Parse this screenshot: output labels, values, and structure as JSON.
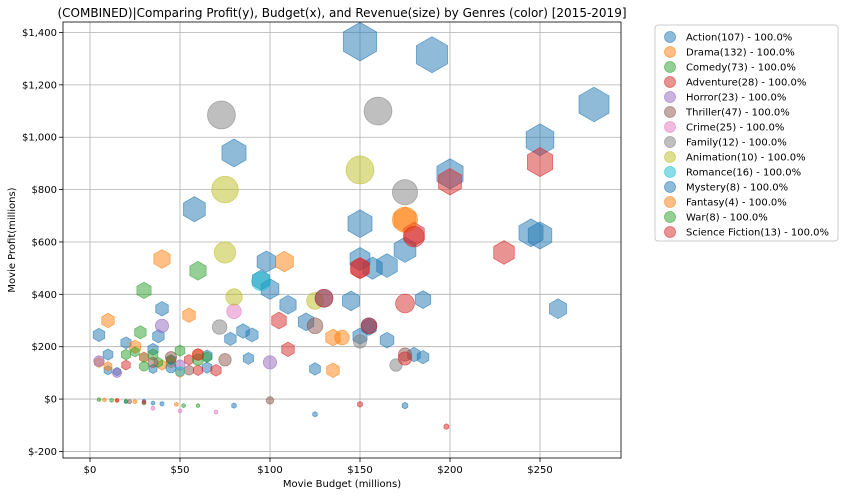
{
  "chart_data": {
    "type": "scatter",
    "title": "(COMBINED)|Comparing Profit(y), Budget(x), and Revenue(size) by Genres (color) [2015-2019]",
    "xlabel": "Movie Budget (millions)",
    "ylabel": "Movie Profit(millions)",
    "xlim": [
      -15,
      295
    ],
    "ylim": [
      -225,
      1440
    ],
    "x_ticks": [
      0,
      50,
      100,
      150,
      200,
      250
    ],
    "x_tick_labels": [
      "$0",
      "$50",
      "$100",
      "$150",
      "$200",
      "$250"
    ],
    "y_ticks": [
      -200,
      0,
      200,
      400,
      600,
      800,
      1000,
      1200,
      1400
    ],
    "y_tick_labels": [
      "$-200",
      "$0",
      "$200",
      "$400",
      "$600",
      "$800",
      "$1,000",
      "$1,200",
      "$1,400"
    ],
    "grid": true,
    "legend_position": "outside-right",
    "colors": {
      "Action": "#1f77b4",
      "Drama": "#ff7f0e",
      "Comedy": "#2ca02c",
      "Adventure": "#d62728",
      "Horror": "#9467bd",
      "Thriller": "#8c564b",
      "Crime": "#e377c2",
      "Family": "#7f7f7f",
      "Animation": "#bcbd22",
      "Romance": "#17becf",
      "Mystery": "#1f77b4",
      "Fantasy": "#ff7f0e",
      "War": "#2ca02c",
      "Science Fiction": "#d62728"
    },
    "legend": [
      {
        "label": "Action(107) - 100.0%",
        "color": "#1f77b4"
      },
      {
        "label": "Drama(132) - 100.0%",
        "color": "#ff7f0e"
      },
      {
        "label": "Comedy(73) - 100.0%",
        "color": "#2ca02c"
      },
      {
        "label": "Adventure(28) - 100.0%",
        "color": "#d62728"
      },
      {
        "label": "Horror(23) - 100.0%",
        "color": "#9467bd"
      },
      {
        "label": "Thriller(47) - 100.0%",
        "color": "#8c564b"
      },
      {
        "label": "Crime(25) - 100.0%",
        "color": "#e377c2"
      },
      {
        "label": "Family(12) - 100.0%",
        "color": "#7f7f7f"
      },
      {
        "label": "Animation(10) - 100.0%",
        "color": "#bcbd22"
      },
      {
        "label": "Romance(16) - 100.0%",
        "color": "#17becf"
      },
      {
        "label": "Mystery(8) - 100.0%",
        "color": "#1f77b4"
      },
      {
        "label": "Fantasy(4) - 100.0%",
        "color": "#ff7f0e"
      },
      {
        "label": "War(8) - 100.0%",
        "color": "#2ca02c"
      },
      {
        "label": "Science Fiction(13) - 100.0%",
        "color": "#d62728"
      }
    ],
    "series": [
      {
        "genre": "Action",
        "marker": "hexagon",
        "points": [
          [
            150,
            1365,
            2100
          ],
          [
            190,
            1315,
            1850
          ],
          [
            280,
            1125,
            1700
          ],
          [
            250,
            990,
            1450
          ],
          [
            200,
            860,
            1300
          ],
          [
            80,
            940,
            1100
          ],
          [
            58,
            725,
            900
          ],
          [
            150,
            670,
            1100
          ],
          [
            245,
            635,
            1100
          ],
          [
            250,
            625,
            1050
          ],
          [
            175,
            570,
            900
          ],
          [
            165,
            510,
            800
          ],
          [
            150,
            535,
            750
          ],
          [
            157,
            500,
            700
          ],
          [
            98,
            525,
            650
          ],
          [
            100,
            420,
            600
          ],
          [
            95,
            455,
            550
          ],
          [
            110,
            360,
            500
          ],
          [
            145,
            375,
            550
          ],
          [
            185,
            380,
            450
          ],
          [
            260,
            345,
            550
          ],
          [
            120,
            295,
            450
          ],
          [
            155,
            275,
            400
          ],
          [
            40,
            345,
            300
          ],
          [
            150,
            240,
            380
          ],
          [
            165,
            225,
            350
          ],
          [
            180,
            170,
            300
          ],
          [
            185,
            160,
            250
          ],
          [
            5,
            245,
            250
          ],
          [
            10,
            170,
            180
          ],
          [
            20,
            215,
            200
          ],
          [
            35,
            190,
            200
          ],
          [
            38,
            240,
            250
          ],
          [
            85,
            260,
            300
          ],
          [
            90,
            245,
            280
          ],
          [
            78,
            230,
            250
          ],
          [
            65,
            165,
            200
          ],
          [
            88,
            155,
            200
          ],
          [
            125,
            115,
            220
          ],
          [
            65,
            120,
            180
          ],
          [
            45,
            150,
            150
          ],
          [
            30,
            160,
            150
          ],
          [
            10,
            110,
            120
          ],
          [
            15,
            105,
            100
          ],
          [
            35,
            115,
            120
          ],
          [
            175,
            -25,
            60
          ],
          [
            80,
            -25,
            40
          ],
          [
            125,
            -58,
            40
          ],
          [
            40,
            -18,
            30
          ],
          [
            35,
            -15,
            25
          ],
          [
            20,
            -10,
            20
          ],
          [
            30,
            -8,
            20
          ]
        ]
      },
      {
        "genre": "Drama",
        "marker": "hexagon",
        "points": [
          [
            175,
            685,
            900
          ],
          [
            108,
            525,
            600
          ],
          [
            40,
            535,
            500
          ],
          [
            10,
            300,
            300
          ],
          [
            55,
            320,
            300
          ],
          [
            135,
            235,
            400
          ],
          [
            135,
            110,
            300
          ],
          [
            25,
            200,
            250
          ],
          [
            60,
            170,
            200
          ],
          [
            45,
            140,
            180
          ],
          [
            40,
            130,
            150
          ],
          [
            30,
            160,
            150
          ],
          [
            5,
            140,
            150
          ],
          [
            10,
            125,
            120
          ],
          [
            50,
            100,
            120
          ],
          [
            48,
            -20,
            25
          ],
          [
            25,
            -10,
            25
          ],
          [
            15,
            -5,
            20
          ],
          [
            8,
            -3,
            18
          ]
        ]
      },
      {
        "genre": "Comedy",
        "marker": "hexagon",
        "points": [
          [
            60,
            490,
            500
          ],
          [
            30,
            415,
            380
          ],
          [
            28,
            255,
            250
          ],
          [
            50,
            185,
            180
          ],
          [
            35,
            170,
            180
          ],
          [
            20,
            170,
            160
          ],
          [
            65,
            160,
            160
          ],
          [
            38,
            140,
            140
          ],
          [
            25,
            180,
            140
          ],
          [
            45,
            150,
            140
          ],
          [
            52,
            -25,
            25
          ],
          [
            60,
            -25,
            20
          ],
          [
            30,
            -15,
            18
          ],
          [
            12,
            -5,
            15
          ],
          [
            20,
            -8,
            15
          ],
          [
            5,
            -2,
            12
          ]
        ]
      },
      {
        "genre": "Adventure",
        "marker": "hexagon",
        "points": [
          [
            250,
            905,
            1200
          ],
          [
            200,
            830,
            1000
          ],
          [
            230,
            560,
            800
          ],
          [
            180,
            630,
            800
          ],
          [
            150,
            500,
            650
          ],
          [
            105,
            300,
            400
          ],
          [
            110,
            190,
            300
          ],
          [
            70,
            110,
            200
          ],
          [
            60,
            110,
            160
          ],
          [
            55,
            150,
            160
          ],
          [
            20,
            130,
            140
          ],
          [
            150,
            -20,
            45
          ],
          [
            198,
            -105,
            45
          ],
          [
            30,
            -12,
            20
          ],
          [
            15,
            -5,
            15
          ]
        ]
      },
      {
        "genre": "Horror",
        "marker": "circle",
        "points": [
          [
            40,
            280,
            250
          ],
          [
            100,
            140,
            250
          ],
          [
            5,
            145,
            160
          ],
          [
            15,
            100,
            120
          ],
          [
            50,
            130,
            150
          ]
        ]
      },
      {
        "genre": "Thriller",
        "marker": "circle",
        "points": [
          [
            125,
            280,
            350
          ],
          [
            75,
            150,
            220
          ],
          [
            45,
            160,
            180
          ],
          [
            100,
            -5,
            80
          ],
          [
            35,
            140,
            140
          ],
          [
            55,
            110,
            130
          ],
          [
            175,
            170,
            250
          ],
          [
            22,
            -10,
            15
          ]
        ]
      },
      {
        "genre": "Crime",
        "marker": "circle",
        "points": [
          [
            80,
            335,
            300
          ],
          [
            70,
            -50,
            15
          ],
          [
            50,
            -45,
            12
          ],
          [
            35,
            -35,
            12
          ]
        ]
      },
      {
        "genre": "Family",
        "marker": "circle",
        "points": [
          [
            73,
            1085,
            1100
          ],
          [
            160,
            1100,
            1100
          ],
          [
            175,
            790,
            900
          ],
          [
            72,
            275,
            300
          ],
          [
            150,
            220,
            250
          ],
          [
            170,
            130,
            220
          ]
        ]
      },
      {
        "genre": "Animation",
        "marker": "circle",
        "points": [
          [
            150,
            875,
            1100
          ],
          [
            75,
            800,
            1000
          ],
          [
            75,
            560,
            650
          ],
          [
            125,
            375,
            400
          ],
          [
            80,
            390,
            380
          ]
        ]
      },
      {
        "genre": "Romance",
        "marker": "circle",
        "points": [
          [
            95,
            450,
            500
          ],
          [
            50,
            105,
            130
          ]
        ]
      },
      {
        "genre": "Mystery",
        "marker": "circle",
        "points": [
          [
            130,
            385,
            450
          ],
          [
            155,
            280,
            350
          ],
          [
            45,
            120,
            150
          ]
        ]
      },
      {
        "genre": "Fantasy",
        "marker": "circle",
        "points": [
          [
            175,
            685,
            900
          ],
          [
            140,
            235,
            300
          ]
        ]
      },
      {
        "genre": "War",
        "marker": "circle",
        "points": [
          [
            60,
            150,
            180
          ],
          [
            30,
            125,
            130
          ]
        ]
      },
      {
        "genre": "Science Fiction",
        "marker": "circle",
        "points": [
          [
            175,
            365,
            500
          ],
          [
            130,
            385,
            450
          ],
          [
            155,
            280,
            350
          ],
          [
            150,
            500,
            500
          ],
          [
            180,
            620,
            600
          ],
          [
            175,
            155,
            250
          ],
          [
            60,
            170,
            180
          ]
        ]
      }
    ]
  }
}
